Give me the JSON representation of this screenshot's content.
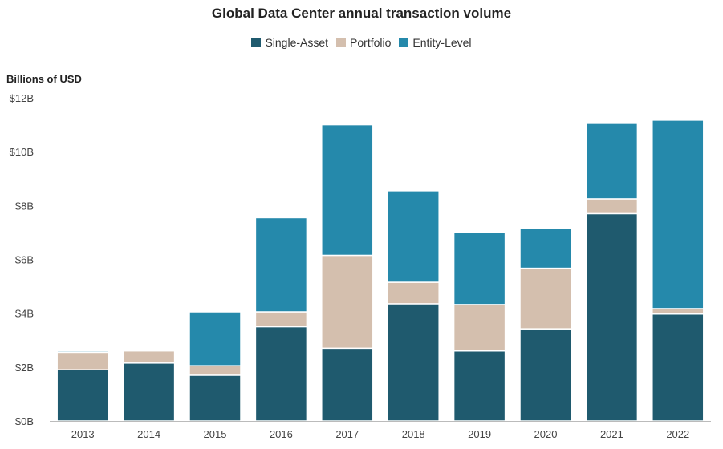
{
  "chart_data": {
    "type": "bar",
    "stacked": true,
    "title": "Global Data Center annual transaction volume",
    "ylabel": "Billions of USD",
    "xlabel": "",
    "categories": [
      "2013",
      "2014",
      "2015",
      "2016",
      "2017",
      "2018",
      "2019",
      "2020",
      "2021",
      "2022"
    ],
    "series": [
      {
        "name": "Single-Asset",
        "color": "#1f5a6e",
        "values": [
          1.9,
          2.15,
          1.7,
          3.5,
          2.7,
          4.35,
          2.6,
          3.42,
          7.7,
          3.97
        ]
      },
      {
        "name": "Portfolio",
        "color": "#d4bfae",
        "values": [
          0.65,
          0.45,
          0.35,
          0.55,
          3.45,
          0.8,
          1.72,
          2.25,
          0.55,
          0.2
        ]
      },
      {
        "name": "Entity-Level",
        "color": "#2589ab",
        "values": [
          0.05,
          0.0,
          2.0,
          3.5,
          4.85,
          3.4,
          2.68,
          1.48,
          2.8,
          7.0
        ]
      }
    ],
    "ylim": [
      0,
      12
    ],
    "yticks": [
      0,
      2,
      4,
      6,
      8,
      10,
      12
    ],
    "ytick_labels": [
      "$0B",
      "$2B",
      "$4B",
      "$6B",
      "$8B",
      "$10B",
      "$12B"
    ],
    "grid": false,
    "legend_position": "top-center"
  }
}
